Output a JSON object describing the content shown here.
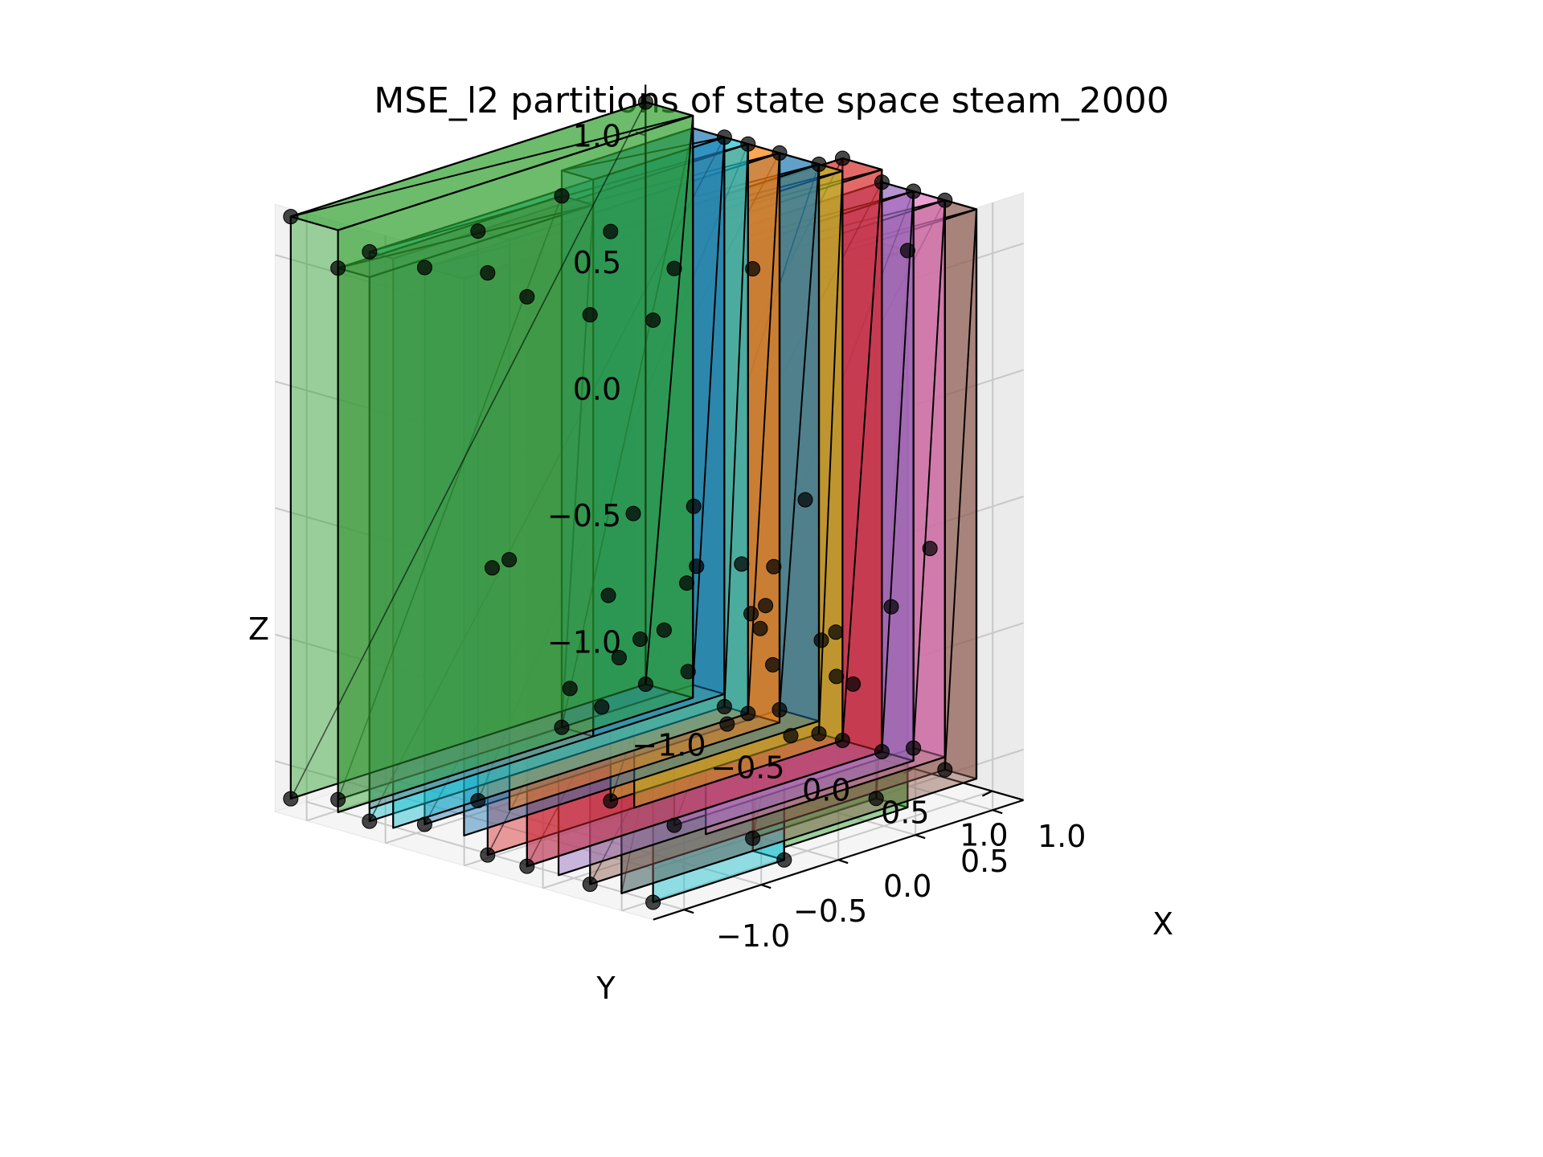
{
  "chart_data": {
    "type": "scatter",
    "projection": "3d",
    "title": "MSE_l2 partitions of state space steam_2000",
    "xlabel": "X",
    "ylabel": "Y",
    "zlabel": "Z",
    "xlim": [
      -1.2,
      1.2
    ],
    "ylim": [
      -1.2,
      1.2
    ],
    "zlim": [
      -1.2,
      1.2
    ],
    "xticks": [
      "−1.0",
      "−0.5",
      "0.0",
      "0.5",
      "1.0"
    ],
    "yticks": [
      "−1.0",
      "−0.5",
      "0.0",
      "0.5",
      "1.0"
    ],
    "zticks": [
      "−1.0",
      "−0.5",
      "0.0",
      "0.5",
      "1.0"
    ],
    "grid": true,
    "view": {
      "elev": 20,
      "azim": 30
    },
    "partition_colors": [
      "#2ca02c",
      "#7f7f7f",
      "#17becf",
      "#ff7f0e",
      "#1f77b4",
      "#bcbd22",
      "#d62728",
      "#9467bd",
      "#e377c2",
      "#8c564b",
      "#17becf",
      "#2ca02c",
      "#1f77b4"
    ],
    "partitions": [
      {
        "y": [
          -1.15,
          -0.85
        ],
        "x": [
          -1.15,
          1.15
        ],
        "z": [
          -1.15,
          1.15
        ]
      },
      {
        "y": [
          -0.85,
          -0.65
        ],
        "x": [
          -1.15,
          0.3
        ],
        "z": [
          -1.1,
          1.0
        ]
      },
      {
        "y": [
          -0.65,
          -0.5
        ],
        "x": [
          -1.15,
          1.15
        ],
        "z": [
          -1.15,
          1.1
        ]
      },
      {
        "y": [
          -0.5,
          -0.3
        ],
        "x": [
          -0.6,
          1.15
        ],
        "z": [
          -1.15,
          1.1
        ]
      },
      {
        "y": [
          -0.3,
          -0.05
        ],
        "x": [
          -1.15,
          1.15
        ],
        "z": [
          -1.1,
          1.1
        ]
      },
      {
        "y": [
          -0.05,
          0.1
        ],
        "x": [
          -0.2,
          1.15
        ],
        "z": [
          -1.15,
          1.1
        ]
      },
      {
        "y": [
          0.1,
          0.35
        ],
        "x": [
          -1.15,
          1.15
        ],
        "z": [
          -1.15,
          1.15
        ]
      },
      {
        "y": [
          0.35,
          0.55
        ],
        "x": [
          -1.15,
          1.15
        ],
        "z": [
          -1.15,
          1.1
        ]
      },
      {
        "y": [
          0.55,
          0.75
        ],
        "x": [
          -0.4,
          1.15
        ],
        "z": [
          -1.1,
          1.1
        ]
      },
      {
        "y": [
          0.75,
          0.95
        ],
        "x": [
          -1.15,
          1.15
        ],
        "z": [
          -1.15,
          1.1
        ]
      },
      {
        "y": [
          0.95,
          1.15
        ],
        "x": [
          -1.15,
          -0.3
        ],
        "z": [
          -1.15,
          1.15
        ]
      },
      {
        "y": [
          0.95,
          1.15
        ],
        "x": [
          -0.3,
          0.5
        ],
        "z": [
          -1.1,
          1.1
        ]
      },
      {
        "y": [
          -0.85,
          -0.65
        ],
        "x": [
          0.3,
          1.15
        ],
        "z": [
          -1.1,
          1.1
        ]
      }
    ],
    "points": [
      [
        -1.15,
        -1.15,
        1.15
      ],
      [
        1.15,
        -1.15,
        1.15
      ],
      [
        -1.15,
        -1.15,
        -1.15
      ],
      [
        1.15,
        -1.15,
        -1.15
      ],
      [
        0.3,
        -0.85,
        1.0
      ],
      [
        -1.15,
        -0.85,
        1.0
      ],
      [
        0.3,
        -0.85,
        -1.1
      ],
      [
        -1.15,
        -0.85,
        -1.1
      ],
      [
        1.15,
        -0.65,
        1.1
      ],
      [
        -1.15,
        -0.65,
        1.1
      ],
      [
        1.15,
        -0.65,
        -1.15
      ],
      [
        -1.15,
        -0.65,
        -1.15
      ],
      [
        -0.6,
        -0.5,
        1.1
      ],
      [
        1.15,
        -0.5,
        1.1
      ],
      [
        -0.6,
        -0.5,
        -1.15
      ],
      [
        1.15,
        -0.5,
        -1.15
      ],
      [
        1.15,
        -0.3,
        1.1
      ],
      [
        -1.15,
        -0.3,
        1.1
      ],
      [
        1.15,
        -0.3,
        -1.1
      ],
      [
        -1.15,
        -0.3,
        -1.1
      ],
      [
        1.15,
        -0.05,
        1.1
      ],
      [
        -0.2,
        -0.05,
        1.1
      ],
      [
        1.15,
        -0.05,
        -1.15
      ],
      [
        -0.2,
        -0.05,
        -1.15
      ],
      [
        1.15,
        0.1,
        1.15
      ],
      [
        -1.15,
        0.1,
        1.15
      ],
      [
        1.15,
        0.1,
        -1.15
      ],
      [
        -1.15,
        0.1,
        -1.15
      ],
      [
        1.15,
        0.35,
        1.1
      ],
      [
        -1.15,
        0.35,
        1.1
      ],
      [
        1.15,
        0.35,
        -1.15
      ],
      [
        -1.15,
        0.35,
        -1.15
      ],
      [
        1.15,
        0.55,
        1.1
      ],
      [
        -0.4,
        0.55,
        1.1
      ],
      [
        1.15,
        0.55,
        -1.1
      ],
      [
        -0.4,
        0.55,
        -1.1
      ],
      [
        1.15,
        0.75,
        1.1
      ],
      [
        -1.15,
        0.75,
        1.1
      ],
      [
        1.15,
        0.75,
        -1.15
      ],
      [
        -1.15,
        0.75,
        -1.15
      ],
      [
        -0.3,
        0.95,
        1.15
      ],
      [
        -1.15,
        1.15,
        1.15
      ],
      [
        -1.15,
        1.15,
        -1.15
      ],
      [
        -0.3,
        1.15,
        -1.15
      ],
      [
        0.5,
        1.15,
        1.1
      ],
      [
        0.5,
        0.95,
        -1.1
      ],
      [
        -0.3,
        0.95,
        -1.1
      ],
      [
        0.2,
        -0.7,
        -0.9
      ],
      [
        0.5,
        -0.75,
        -0.6
      ],
      [
        0.4,
        -0.45,
        -0.7
      ],
      [
        0.1,
        -0.4,
        -0.9
      ],
      [
        0.6,
        -0.35,
        -0.5
      ],
      [
        0.3,
        -0.2,
        -0.6
      ],
      [
        0.7,
        -0.1,
        -0.4
      ],
      [
        0.2,
        0.05,
        -0.7
      ],
      [
        0.6,
        0.15,
        -0.5
      ],
      [
        0.3,
        0.2,
        -0.9
      ],
      [
        0.5,
        0.3,
        -0.3
      ],
      [
        0.8,
        0.4,
        -0.6
      ],
      [
        0.2,
        0.45,
        -0.4
      ],
      [
        0.6,
        0.6,
        -0.7
      ],
      [
        0.4,
        0.7,
        -0.5
      ],
      [
        0.1,
        0.8,
        -0.8
      ],
      [
        0.7,
        0.85,
        -0.4
      ],
      [
        0.3,
        1.0,
        -0.6
      ],
      [
        -0.2,
        0.9,
        -0.3
      ],
      [
        0.9,
        -0.6,
        -0.3
      ],
      [
        -0.1,
        -0.9,
        -0.4
      ],
      [
        0.0,
        0.3,
        -0.2
      ],
      [
        0.8,
        0.0,
        -0.8
      ],
      [
        -0.4,
        0.2,
        -0.5
      ],
      [
        0.1,
        -0.2,
        -0.1
      ],
      [
        0.5,
        0.5,
        0.0
      ],
      [
        -0.5,
        -0.4,
        -0.2
      ],
      [
        0.9,
        0.9,
        -0.2
      ]
    ]
  }
}
